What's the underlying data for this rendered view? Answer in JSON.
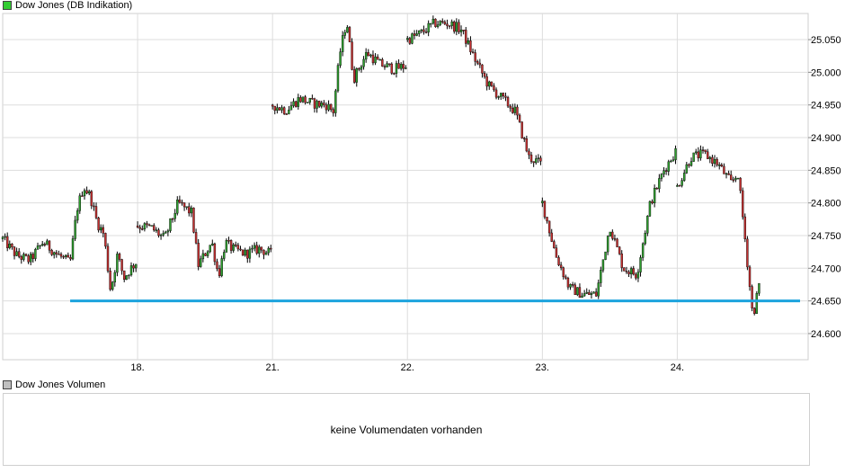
{
  "price_panel": {
    "legend": "Dow Jones (DB Indikation)",
    "legend_color": "#33cc33"
  },
  "volume_panel": {
    "legend": "Dow Jones Volumen",
    "legend_color": "#c0c0c0",
    "empty_text": "keine Volumendaten vorhanden"
  },
  "colors": {
    "up": "#2e9e2e",
    "down": "#c43030",
    "wick": "#000000",
    "grid": "#dddddd",
    "reference_line": "#1ca3dd"
  },
  "chart_data": {
    "type": "candlestick",
    "title": "Dow Jones (DB Indikation)",
    "y_ticks": [
      24600,
      24650,
      24700,
      24750,
      24800,
      24850,
      24900,
      24950,
      25000,
      25050
    ],
    "y_tick_labels": [
      "24.600",
      "24.650",
      "24.700",
      "24.750",
      "24.800",
      "24.850",
      "24.900",
      "24.950",
      "25.000",
      "25.050"
    ],
    "ylim": [
      24560,
      25090
    ],
    "x_ticks": [
      1,
      2,
      3,
      4,
      5
    ],
    "x_tick_labels": [
      "18.",
      "21.",
      "22.",
      "23.",
      "24."
    ],
    "xlim": [
      0,
      5.97
    ],
    "reference_line": {
      "value": 24650,
      "x_start": 0.5,
      "x_end": 5.91
    },
    "segments": [
      {
        "start": 0.0,
        "end": 1.0,
        "points": [
          [
            0.0,
            24745
          ],
          [
            0.1,
            24720
          ],
          [
            0.2,
            24712
          ],
          [
            0.3,
            24740
          ],
          [
            0.4,
            24722
          ],
          [
            0.5,
            24708
          ],
          [
            0.55,
            24790
          ],
          [
            0.6,
            24825
          ],
          [
            0.65,
            24810
          ],
          [
            0.7,
            24770
          ],
          [
            0.75,
            24752
          ],
          [
            0.8,
            24665
          ],
          [
            0.85,
            24720
          ],
          [
            0.9,
            24685
          ],
          [
            0.95,
            24700
          ],
          [
            1.0,
            24712
          ]
        ]
      },
      {
        "start": 1.0,
        "end": 1.99,
        "points": [
          [
            1.0,
            24765
          ],
          [
            1.1,
            24762
          ],
          [
            1.2,
            24745
          ],
          [
            1.3,
            24800
          ],
          [
            1.4,
            24785
          ],
          [
            1.45,
            24705
          ],
          [
            1.55,
            24740
          ],
          [
            1.6,
            24688
          ],
          [
            1.65,
            24740
          ],
          [
            1.7,
            24730
          ],
          [
            1.8,
            24722
          ],
          [
            1.9,
            24730
          ],
          [
            1.99,
            24722
          ]
        ]
      },
      {
        "start": 2.0,
        "end": 2.99,
        "points": [
          [
            2.0,
            24950
          ],
          [
            2.1,
            24942
          ],
          [
            2.2,
            24960
          ],
          [
            2.3,
            24952
          ],
          [
            2.4,
            24950
          ],
          [
            2.45,
            24940
          ],
          [
            2.5,
            25030
          ],
          [
            2.55,
            25080
          ],
          [
            2.6,
            24990
          ],
          [
            2.7,
            25030
          ],
          [
            2.8,
            25012
          ],
          [
            2.9,
            25005
          ],
          [
            2.99,
            25010
          ]
        ]
      },
      {
        "start": 3.0,
        "end": 3.99,
        "points": [
          [
            3.0,
            25050
          ],
          [
            3.1,
            25060
          ],
          [
            3.2,
            25075
          ],
          [
            3.3,
            25075
          ],
          [
            3.4,
            25065
          ],
          [
            3.5,
            25020
          ],
          [
            3.6,
            24980
          ],
          [
            3.7,
            24960
          ],
          [
            3.8,
            24940
          ],
          [
            3.9,
            24870
          ],
          [
            3.99,
            24860
          ]
        ]
      },
      {
        "start": 4.0,
        "end": 4.99,
        "points": [
          [
            4.0,
            24800
          ],
          [
            4.1,
            24720
          ],
          [
            4.2,
            24670
          ],
          [
            4.3,
            24660
          ],
          [
            4.4,
            24660
          ],
          [
            4.5,
            24765
          ],
          [
            4.6,
            24700
          ],
          [
            4.7,
            24690
          ],
          [
            4.8,
            24800
          ],
          [
            4.9,
            24850
          ],
          [
            4.99,
            24880
          ]
        ]
      },
      {
        "start": 5.0,
        "end": 5.62,
        "points": [
          [
            5.0,
            24825
          ],
          [
            5.1,
            24870
          ],
          [
            5.2,
            24875
          ],
          [
            5.3,
            24860
          ],
          [
            5.4,
            24830
          ],
          [
            5.45,
            24845
          ],
          [
            5.5,
            24750
          ],
          [
            5.56,
            24625
          ],
          [
            5.62,
            24690
          ]
        ]
      }
    ]
  }
}
